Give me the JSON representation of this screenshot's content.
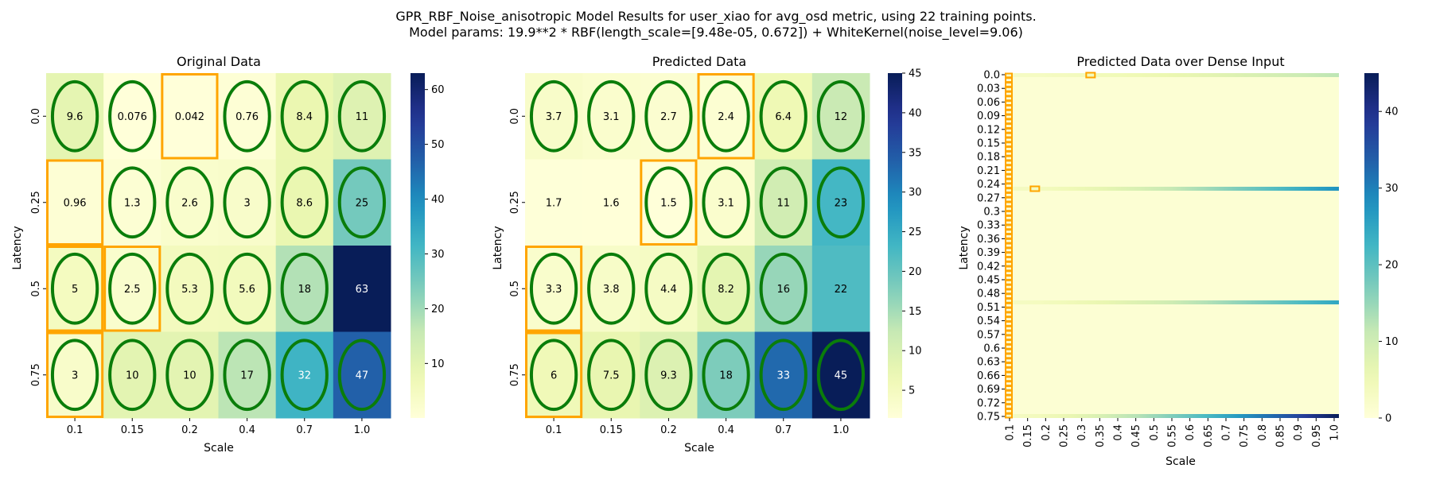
{
  "chart_data": {
    "suptitle": [
      "GPR_RBF_Noise_anisotropic Model Results for user_xiao for avg_osd metric, using 22 training points.",
      "Model params: 19.9**2 * RBF(length_scale=[9.48e-05, 0.672]) + WhiteKernel(noise_level=9.06)"
    ],
    "charts": [
      {
        "type": "heatmap",
        "title": "Original Data",
        "xlabel": "Scale",
        "ylabel": "Latency",
        "x": [
          "0.1",
          "0.15",
          "0.2",
          "0.4",
          "0.7",
          "1.0"
        ],
        "y": [
          "0.0",
          "0.25",
          "0.5",
          "0.75"
        ],
        "values": [
          [
            9.6,
            0.076,
            0.042,
            0.76,
            8.4,
            11
          ],
          [
            0.96,
            1.3,
            2.6,
            3,
            8.6,
            25
          ],
          [
            5,
            2.5,
            5.3,
            5.6,
            18,
            63
          ],
          [
            3,
            10,
            10,
            17,
            32,
            47
          ]
        ],
        "labels": [
          [
            "9.6",
            "0.076",
            "0.042",
            "0.76",
            "8.4",
            "11"
          ],
          [
            "0.96",
            "1.3",
            "2.6",
            "3",
            "8.6",
            "25"
          ],
          [
            "5",
            "2.5",
            "5.3",
            "5.6",
            "18",
            "63"
          ],
          [
            "3",
            "10",
            "10",
            "17",
            "32",
            "47"
          ]
        ],
        "vmin": 0.042,
        "vmax": 63,
        "colorbar_ticks": [
          10,
          20,
          30,
          40,
          50,
          60
        ],
        "ellipses": [
          [
            0,
            0
          ],
          [
            0,
            1
          ],
          [
            0,
            3
          ],
          [
            0,
            4
          ],
          [
            0,
            5
          ],
          [
            1,
            1
          ],
          [
            1,
            2
          ],
          [
            1,
            3
          ],
          [
            1,
            4
          ],
          [
            1,
            5
          ],
          [
            2,
            0
          ],
          [
            2,
            1
          ],
          [
            2,
            2
          ],
          [
            2,
            3
          ],
          [
            2,
            4
          ],
          [
            3,
            0
          ],
          [
            3,
            1
          ],
          [
            3,
            2
          ],
          [
            3,
            3
          ],
          [
            3,
            4
          ],
          [
            3,
            5
          ]
        ],
        "highlights": [
          [
            0,
            2
          ],
          [
            1,
            0
          ],
          [
            2,
            0
          ],
          [
            2,
            1
          ],
          [
            3,
            0
          ]
        ]
      },
      {
        "type": "heatmap",
        "title": "Predicted Data",
        "xlabel": "Scale",
        "ylabel": "Latency",
        "x": [
          "0.1",
          "0.15",
          "0.2",
          "0.4",
          "0.7",
          "1.0"
        ],
        "y": [
          "0.0",
          "0.25",
          "0.5",
          "0.75"
        ],
        "values": [
          [
            3.7,
            3.1,
            2.7,
            2.4,
            6.4,
            12
          ],
          [
            1.7,
            1.6,
            1.5,
            3.1,
            11,
            23
          ],
          [
            3.3,
            3.8,
            4.4,
            8.2,
            16,
            22
          ],
          [
            6,
            7.5,
            9.3,
            18,
            33,
            45
          ]
        ],
        "labels": [
          [
            "3.7",
            "3.1",
            "2.7",
            "2.4",
            "6.4",
            "12"
          ],
          [
            "1.7",
            "1.6",
            "1.5",
            "3.1",
            "11",
            "23"
          ],
          [
            "3.3",
            "3.8",
            "4.4",
            "8.2",
            "16",
            "22"
          ],
          [
            "6",
            "7.5",
            "9.3",
            "18",
            "33",
            "45"
          ]
        ],
        "vmin": 1.5,
        "vmax": 45,
        "colorbar_ticks": [
          5,
          10,
          15,
          20,
          25,
          30,
          35,
          40,
          45
        ],
        "ellipses": [
          [
            0,
            0
          ],
          [
            0,
            1
          ],
          [
            0,
            2
          ],
          [
            0,
            3
          ],
          [
            0,
            4
          ],
          [
            0,
            5
          ],
          [
            1,
            2
          ],
          [
            1,
            3
          ],
          [
            1,
            4
          ],
          [
            1,
            5
          ],
          [
            2,
            0
          ],
          [
            2,
            1
          ],
          [
            2,
            2
          ],
          [
            2,
            3
          ],
          [
            2,
            4
          ],
          [
            3,
            0
          ],
          [
            3,
            1
          ],
          [
            3,
            2
          ],
          [
            3,
            3
          ],
          [
            3,
            4
          ],
          [
            3,
            5
          ]
        ],
        "highlights": [
          [
            0,
            3
          ],
          [
            1,
            2
          ],
          [
            2,
            0
          ],
          [
            3,
            0
          ]
        ]
      },
      {
        "type": "heatmap",
        "title": "Predicted Data over Dense Input",
        "xlabel": "Scale",
        "ylabel": "Latency",
        "x": [
          "0.1",
          "0.15",
          "0.2",
          "0.25",
          "0.3",
          "0.35",
          "0.4",
          "0.45",
          "0.5",
          "0.55",
          "0.6",
          "0.65",
          "0.7",
          "0.75",
          "0.8",
          "0.85",
          "0.9",
          "0.95",
          "1.0"
        ],
        "y": [
          "0.0",
          "0.03",
          "0.06",
          "0.09",
          "0.12",
          "0.15",
          "0.18",
          "0.21",
          "0.24",
          "0.27",
          "0.3",
          "0.33",
          "0.36",
          "0.39",
          "0.42",
          "0.45",
          "0.48",
          "0.51",
          "0.54",
          "0.57",
          "0.6",
          "0.63",
          "0.66",
          "0.69",
          "0.72",
          "0.75"
        ],
        "bright_rows": [
          {
            "latency": 0.0,
            "start": 3,
            "end": 12
          },
          {
            "latency": 0.25,
            "start": 3,
            "end": 28
          },
          {
            "latency": 0.5,
            "start": 3,
            "end": 25
          },
          {
            "latency": 0.75,
            "start": 3,
            "end": 45
          }
        ],
        "vmin": 0,
        "vmax": 45,
        "colorbar_ticks": [
          0,
          10,
          20,
          30,
          40
        ]
      }
    ]
  },
  "colors": {
    "ellipse": "#0a7d0a",
    "highlight": "#ffa500",
    "colormap": [
      "#ffffd9",
      "#edf8b1",
      "#c7e9b4",
      "#7fcdbb",
      "#41b6c4",
      "#1d91c0",
      "#225ea8",
      "#253494",
      "#081d58"
    ]
  }
}
